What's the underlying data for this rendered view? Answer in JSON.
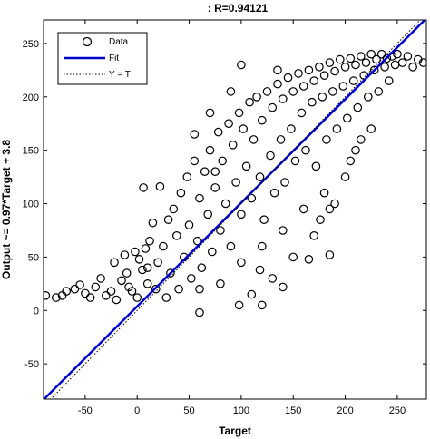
{
  "chart_data": {
    "type": "scatter",
    "title": ": R=0.94121",
    "xlabel": "Target",
    "ylabel": "Output ~= 0.97*Target + 3.8",
    "xlim": [
      -90,
      278
    ],
    "ylim": [
      -83,
      272
    ],
    "x_ticks": [
      -50,
      0,
      50,
      100,
      150,
      200,
      250
    ],
    "y_ticks": [
      -50,
      0,
      50,
      100,
      150,
      200,
      250
    ],
    "grid": false,
    "legend_position": "top-left",
    "legend": [
      {
        "label": "Data",
        "marker": "circle"
      },
      {
        "label": "Fit",
        "style": "solid",
        "color": "#0000cc"
      },
      {
        "label": "Y = T",
        "style": "dotted",
        "color": "#000000"
      }
    ],
    "fit": {
      "slope": 0.97,
      "intercept": 3.8
    },
    "series": [
      {
        "name": "Data",
        "points": [
          [
            -88,
            14
          ],
          [
            -78,
            12
          ],
          [
            -72,
            14
          ],
          [
            -68,
            18
          ],
          [
            -60,
            20
          ],
          [
            -55,
            24
          ],
          [
            -50,
            16
          ],
          [
            -45,
            12
          ],
          [
            -40,
            22
          ],
          [
            -35,
            30
          ],
          [
            -30,
            14
          ],
          [
            -25,
            18
          ],
          [
            -22,
            45
          ],
          [
            -20,
            10
          ],
          [
            -15,
            28
          ],
          [
            -12,
            52
          ],
          [
            -10,
            35
          ],
          [
            -8,
            22
          ],
          [
            -5,
            18
          ],
          [
            -2,
            55
          ],
          [
            0,
            12
          ],
          [
            2,
            48
          ],
          [
            5,
            38
          ],
          [
            6,
            115
          ],
          [
            8,
            58
          ],
          [
            10,
            25
          ],
          [
            10,
            40
          ],
          [
            12,
            65
          ],
          [
            15,
            82
          ],
          [
            18,
            20
          ],
          [
            20,
            45
          ],
          [
            22,
            116
          ],
          [
            25,
            60
          ],
          [
            28,
            12
          ],
          [
            30,
            85
          ],
          [
            32,
            35
          ],
          [
            35,
            95
          ],
          [
            38,
            70
          ],
          [
            40,
            20
          ],
          [
            42,
            110
          ],
          [
            45,
            50
          ],
          [
            48,
            125
          ],
          [
            50,
            80
          ],
          [
            52,
            30
          ],
          [
            55,
            140
          ],
          [
            58,
            65
          ],
          [
            60,
            105
          ],
          [
            62,
            40
          ],
          [
            65,
            130
          ],
          [
            68,
            90
          ],
          [
            70,
            150
          ],
          [
            72,
            55
          ],
          [
            75,
            115
          ],
          [
            78,
            167
          ],
          [
            80,
            75
          ],
          [
            82,
            140
          ],
          [
            85,
            100
          ],
          [
            88,
            175
          ],
          [
            90,
            60
          ],
          [
            92,
            155
          ],
          [
            95,
            120
          ],
          [
            98,
            185
          ],
          [
            100,
            90
          ],
          [
            102,
            170
          ],
          [
            105,
            135
          ],
          [
            108,
            195
          ],
          [
            110,
            105
          ],
          [
            112,
            160
          ],
          [
            115,
            200
          ],
          [
            118,
            125
          ],
          [
            120,
            178
          ],
          [
            122,
            85
          ],
          [
            125,
            205
          ],
          [
            128,
            145
          ],
          [
            130,
            190
          ],
          [
            132,
            110
          ],
          [
            135,
            212
          ],
          [
            138,
            160
          ],
          [
            140,
            198
          ],
          [
            142,
            120
          ],
          [
            145,
            218
          ],
          [
            148,
            170
          ],
          [
            150,
            205
          ],
          [
            152,
            140
          ],
          [
            155,
            222
          ],
          [
            158,
            185
          ],
          [
            160,
            210
          ],
          [
            162,
            150
          ],
          [
            165,
            225
          ],
          [
            168,
            195
          ],
          [
            170,
            215
          ],
          [
            172,
            135
          ],
          [
            175,
            228
          ],
          [
            178,
            200
          ],
          [
            180,
            220
          ],
          [
            182,
            160
          ],
          [
            185,
            232
          ],
          [
            188,
            205
          ],
          [
            190,
            224
          ],
          [
            192,
            170
          ],
          [
            195,
            235
          ],
          [
            198,
            210
          ],
          [
            200,
            228
          ],
          [
            202,
            180
          ],
          [
            205,
            236
          ],
          [
            208,
            215
          ],
          [
            210,
            230
          ],
          [
            212,
            190
          ],
          [
            215,
            238
          ],
          [
            218,
            220
          ],
          [
            220,
            232
          ],
          [
            222,
            200
          ],
          [
            225,
            240
          ],
          [
            228,
            225
          ],
          [
            230,
            235
          ],
          [
            232,
            205
          ],
          [
            235,
            240
          ],
          [
            238,
            228
          ],
          [
            240,
            236
          ],
          [
            242,
            215
          ],
          [
            245,
            238
          ],
          [
            248,
            230
          ],
          [
            250,
            240
          ],
          [
            255,
            232
          ],
          [
            260,
            238
          ],
          [
            265,
            228
          ],
          [
            270,
            235
          ],
          [
            275,
            232
          ],
          [
            60,
            20
          ],
          [
            80,
            25
          ],
          [
            100,
            45
          ],
          [
            120,
            60
          ],
          [
            140,
            75
          ],
          [
            160,
            95
          ],
          [
            180,
            110
          ],
          [
            190,
            100
          ],
          [
            210,
            150
          ],
          [
            225,
            170
          ],
          [
            110,
            15
          ],
          [
            130,
            30
          ],
          [
            150,
            50
          ],
          [
            170,
            70
          ],
          [
            185,
            95
          ],
          [
            200,
            125
          ],
          [
            215,
            160
          ],
          [
            98,
            5
          ],
          [
            118,
            38
          ],
          [
            140,
            22
          ],
          [
            165,
            48
          ],
          [
            176,
            85
          ],
          [
            205,
            140
          ],
          [
            90,
            205
          ],
          [
            100,
            230
          ],
          [
            70,
            185
          ],
          [
            55,
            165
          ],
          [
            185,
            52
          ],
          [
            135,
            225
          ],
          [
            75,
            130
          ],
          [
            120,
            5
          ],
          [
            60,
            -2
          ]
        ]
      }
    ]
  }
}
